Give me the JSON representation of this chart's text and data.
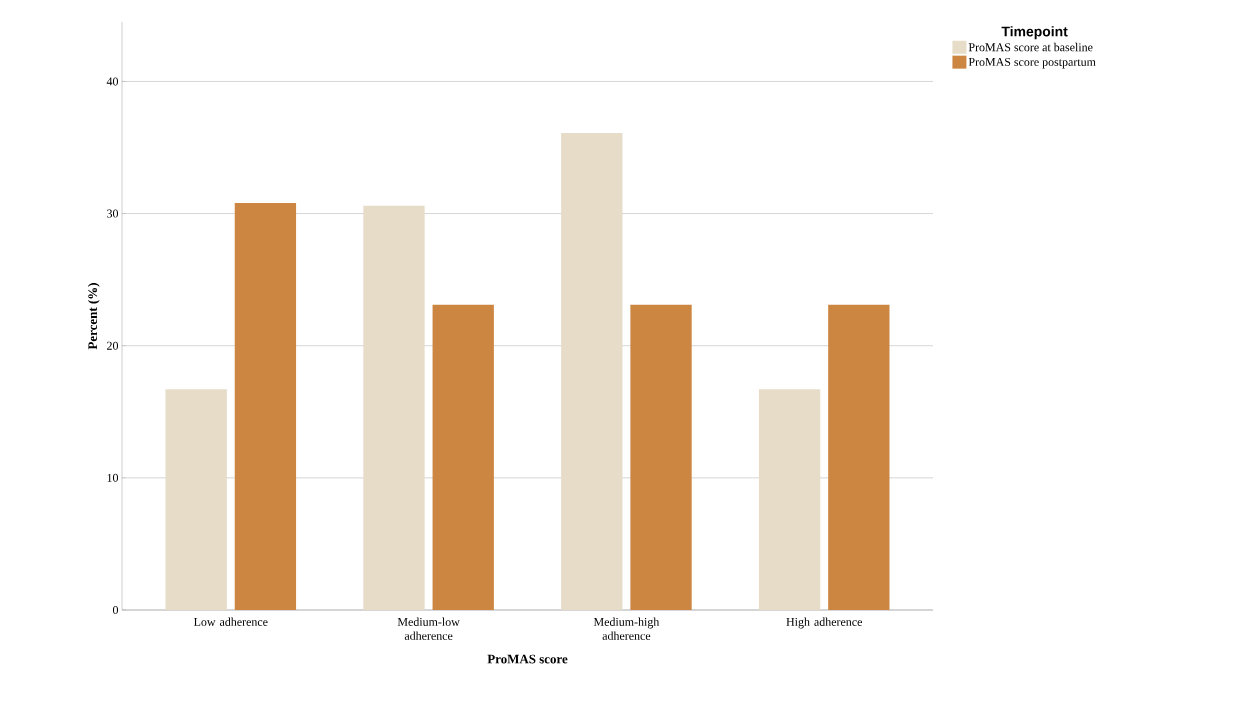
{
  "chart_data": {
    "type": "bar",
    "xlabel": "ProMAS score",
    "ylabel": "Percent (%)",
    "legend_title": "Timepoint",
    "categories": [
      "Low adherence",
      "Medium-low adherence",
      "Medium-high adherence",
      "High adherence"
    ],
    "series": [
      {
        "name": "ProMAS score at baseline",
        "color": "#e6dcc8",
        "values": [
          16.7,
          30.6,
          36.1,
          16.7
        ]
      },
      {
        "name": "ProMAS score postpartum",
        "color": "#cd8642",
        "values": [
          30.8,
          23.1,
          23.1,
          23.1
        ]
      }
    ],
    "ylim": [
      0,
      44.5
    ],
    "yticks": [
      0,
      10,
      20,
      30,
      40
    ],
    "grid": "y",
    "legend": "top right"
  }
}
